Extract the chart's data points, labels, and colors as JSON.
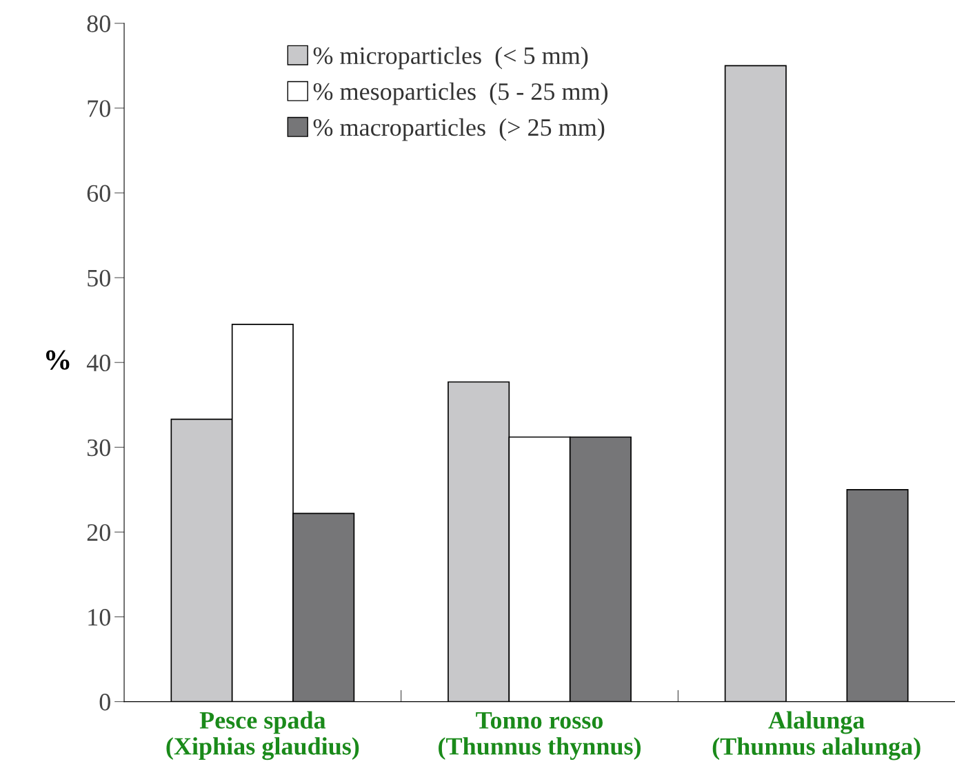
{
  "chart_data": {
    "type": "bar",
    "ylabel": "%",
    "categories": [
      "Pesce spada\n(Xiphias glaudius)",
      "Tonno rosso\n(Thunnus thynnus)",
      "Alalunga\n(Thunnus alalunga)"
    ],
    "series": [
      {
        "name": "% microparticles  (< 5 mm)",
        "color": "#c8c8ca",
        "values": [
          33.3,
          37.7,
          75
        ]
      },
      {
        "name": "% mesoparticles  (5 - 25 mm)",
        "color": "#ffffff",
        "values": [
          44.5,
          31.2,
          null
        ]
      },
      {
        "name": "% macroparticles  (> 25 mm)",
        "color": "#767678",
        "values": [
          22.2,
          31.2,
          25
        ]
      }
    ],
    "ylim": [
      0,
      80
    ],
    "yticks": [
      0,
      10,
      20,
      30,
      40,
      50,
      60,
      70,
      80
    ],
    "legend": "top",
    "grid": false
  }
}
